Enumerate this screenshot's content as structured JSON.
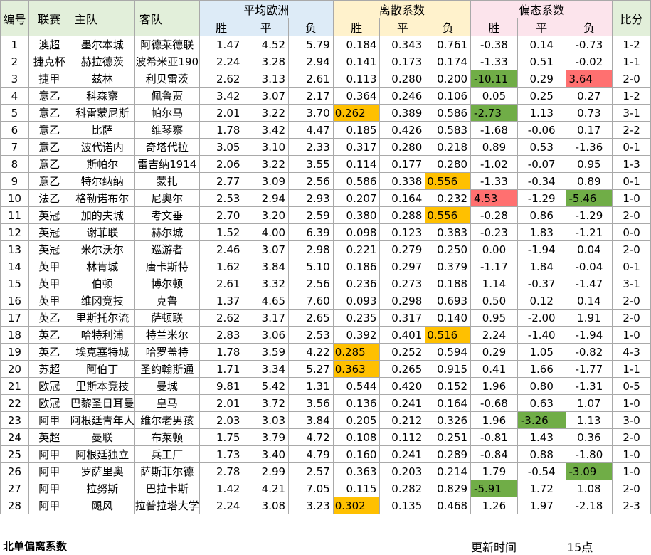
{
  "headers": {
    "id": "编号",
    "league": "联赛",
    "home": "主队",
    "away": "客队",
    "avg": "平均欧洲",
    "disp": "离散系数",
    "skew": "偏态系数",
    "score": "比分",
    "win": "胜",
    "draw": "平",
    "lose": "负"
  },
  "rows": [
    {
      "id": "1",
      "league": "澳超",
      "home": "墨尔本城",
      "away": "阿德莱德联",
      "a": [
        "1.47",
        "4.52",
        "5.79"
      ],
      "d": [
        "0.184",
        "0.343",
        "0.761"
      ],
      "s": [
        "-0.38",
        "0.14",
        "-0.73"
      ],
      "score": "1-2"
    },
    {
      "id": "2",
      "league": "捷克杯",
      "home": "赫拉德茨",
      "away": "波希米亚190",
      "a": [
        "2.24",
        "3.28",
        "2.94"
      ],
      "d": [
        "0.141",
        "0.173",
        "0.174"
      ],
      "s": [
        "-1.33",
        "0.51",
        "-0.02"
      ],
      "score": "1-1"
    },
    {
      "id": "3",
      "league": "捷甲",
      "home": "兹林",
      "away": "利贝雷茨",
      "a": [
        "2.62",
        "3.13",
        "2.61"
      ],
      "d": [
        "0.113",
        "0.280",
        "0.200"
      ],
      "s": [
        "-10.11",
        "0.29",
        "3.64"
      ],
      "score": "2-0"
    },
    {
      "id": "4",
      "league": "意乙",
      "home": "科森察",
      "away": "佩鲁贾",
      "a": [
        "3.42",
        "3.07",
        "2.17"
      ],
      "d": [
        "0.364",
        "0.246",
        "0.106"
      ],
      "s": [
        "0.05",
        "0.25",
        "0.27"
      ],
      "score": "1-2"
    },
    {
      "id": "5",
      "league": "意乙",
      "home": "科雷蒙尼斯",
      "away": "帕尔马",
      "a": [
        "2.01",
        "3.22",
        "3.70"
      ],
      "d": [
        "0.262",
        "0.389",
        "0.586"
      ],
      "s": [
        "-2.73",
        "1.13",
        "0.73"
      ],
      "score": "3-1"
    },
    {
      "id": "6",
      "league": "意乙",
      "home": "比萨",
      "away": "维琴察",
      "a": [
        "1.78",
        "3.42",
        "4.47"
      ],
      "d": [
        "0.185",
        "0.426",
        "0.583"
      ],
      "s": [
        "-1.68",
        "-0.06",
        "0.17"
      ],
      "score": "2-2"
    },
    {
      "id": "7",
      "league": "意乙",
      "home": "波代诺内",
      "away": "奇塔代拉",
      "a": [
        "3.05",
        "3.10",
        "2.33"
      ],
      "d": [
        "0.317",
        "0.280",
        "0.218"
      ],
      "s": [
        "0.89",
        "0.53",
        "-1.36"
      ],
      "score": "0-1"
    },
    {
      "id": "8",
      "league": "意乙",
      "home": "斯帕尔",
      "away": "雷吉纳1914",
      "a": [
        "2.06",
        "3.22",
        "3.55"
      ],
      "d": [
        "0.114",
        "0.177",
        "0.280"
      ],
      "s": [
        "-1.02",
        "-0.07",
        "0.95"
      ],
      "score": "1-3"
    },
    {
      "id": "9",
      "league": "意乙",
      "home": "特尔纳纳",
      "away": "蒙扎",
      "a": [
        "2.77",
        "3.09",
        "2.56"
      ],
      "d": [
        "0.586",
        "0.338",
        "0.556"
      ],
      "s": [
        "-1.33",
        "-0.34",
        "0.89"
      ],
      "score": "0-1"
    },
    {
      "id": "10",
      "league": "法乙",
      "home": "格勒诺布尔",
      "away": "尼奥尔",
      "a": [
        "2.53",
        "2.94",
        "2.93"
      ],
      "d": [
        "0.207",
        "0.164",
        "0.232"
      ],
      "s": [
        "4.53",
        "-1.29",
        "-5.46"
      ],
      "score": "1-0"
    },
    {
      "id": "11",
      "league": "英冠",
      "home": "加的夫城",
      "away": "考文垂",
      "a": [
        "2.70",
        "3.20",
        "2.59"
      ],
      "d": [
        "0.380",
        "0.288",
        "0.556"
      ],
      "s": [
        "-0.28",
        "0.86",
        "-1.29"
      ],
      "score": "2-0"
    },
    {
      "id": "12",
      "league": "英冠",
      "home": "谢菲联",
      "away": "赫尔城",
      "a": [
        "1.52",
        "4.00",
        "6.39"
      ],
      "d": [
        "0.098",
        "0.123",
        "0.383"
      ],
      "s": [
        "-0.23",
        "1.83",
        "-1.21"
      ],
      "score": "0-0"
    },
    {
      "id": "13",
      "league": "英冠",
      "home": "米尔沃尔",
      "away": "巡游者",
      "a": [
        "2.46",
        "3.07",
        "2.98"
      ],
      "d": [
        "0.221",
        "0.279",
        "0.250"
      ],
      "s": [
        "0.00",
        "-1.94",
        "0.04"
      ],
      "score": "2-0"
    },
    {
      "id": "14",
      "league": "英甲",
      "home": "林肯城",
      "away": "唐卡斯特",
      "a": [
        "1.62",
        "3.84",
        "5.10"
      ],
      "d": [
        "0.186",
        "0.297",
        "0.379"
      ],
      "s": [
        "-1.17",
        "1.84",
        "-0.04"
      ],
      "score": "0-1"
    },
    {
      "id": "15",
      "league": "英甲",
      "home": "伯顿",
      "away": "博尔顿",
      "a": [
        "2.61",
        "3.32",
        "2.56"
      ],
      "d": [
        "0.236",
        "0.273",
        "0.188"
      ],
      "s": [
        "1.14",
        "-0.37",
        "-1.47"
      ],
      "score": "3-1"
    },
    {
      "id": "16",
      "league": "英甲",
      "home": "维冈竞技",
      "away": "克鲁",
      "a": [
        "1.37",
        "4.65",
        "7.60"
      ],
      "d": [
        "0.093",
        "0.298",
        "0.693"
      ],
      "s": [
        "0.50",
        "0.12",
        "0.14"
      ],
      "score": "2-0"
    },
    {
      "id": "17",
      "league": "英乙",
      "home": "里斯托尔流",
      "away": "萨顿联",
      "a": [
        "2.62",
        "3.17",
        "2.65"
      ],
      "d": [
        "0.235",
        "0.317",
        "0.140"
      ],
      "s": [
        "0.95",
        "-2.00",
        "1.91"
      ],
      "score": "2-0"
    },
    {
      "id": "18",
      "league": "英乙",
      "home": "哈特利浦",
      "away": "特兰米尔",
      "a": [
        "2.83",
        "3.06",
        "2.53"
      ],
      "d": [
        "0.392",
        "0.401",
        "0.516"
      ],
      "s": [
        "2.24",
        "-1.40",
        "-1.94"
      ],
      "score": "1-0"
    },
    {
      "id": "19",
      "league": "英乙",
      "home": "埃克塞特城",
      "away": "哈罗盖特",
      "a": [
        "1.78",
        "3.59",
        "4.22"
      ],
      "d": [
        "0.285",
        "0.252",
        "0.594"
      ],
      "s": [
        "0.29",
        "1.05",
        "-0.82"
      ],
      "score": "4-3"
    },
    {
      "id": "20",
      "league": "苏超",
      "home": "阿伯丁",
      "away": "圣约翰斯通",
      "a": [
        "1.71",
        "3.34",
        "5.27"
      ],
      "d": [
        "0.363",
        "0.265",
        "0.915"
      ],
      "s": [
        "0.41",
        "1.66",
        "-1.77"
      ],
      "score": "1-1"
    },
    {
      "id": "21",
      "league": "欧冠",
      "home": "里斯本竞技",
      "away": "曼城",
      "a": [
        "9.81",
        "5.42",
        "1.31"
      ],
      "d": [
        "0.544",
        "0.420",
        "0.152"
      ],
      "s": [
        "1.96",
        "0.80",
        "-1.31"
      ],
      "score": "0-5"
    },
    {
      "id": "22",
      "league": "欧冠",
      "home": "巴黎圣日耳曼",
      "away": "皇马",
      "a": [
        "2.01",
        "3.72",
        "3.56"
      ],
      "d": [
        "0.136",
        "0.241",
        "0.164"
      ],
      "s": [
        "-0.68",
        "0.63",
        "1.07"
      ],
      "score": "1-0"
    },
    {
      "id": "23",
      "league": "阿甲",
      "home": "阿根廷青年人",
      "away": "维尔老男孩",
      "a": [
        "2.03",
        "3.03",
        "3.84"
      ],
      "d": [
        "0.205",
        "0.212",
        "0.326"
      ],
      "s": [
        "1.96",
        "-3.26",
        "1.13"
      ],
      "score": "3-0"
    },
    {
      "id": "24",
      "league": "英超",
      "home": "曼联",
      "away": "布莱顿",
      "a": [
        "1.75",
        "3.79",
        "4.72"
      ],
      "d": [
        "0.108",
        "0.112",
        "0.251"
      ],
      "s": [
        "-0.81",
        "1.43",
        "0.36"
      ],
      "score": "2-0"
    },
    {
      "id": "25",
      "league": "阿甲",
      "home": "阿根廷独立",
      "away": "兵工厂",
      "a": [
        "1.73",
        "3.40",
        "4.79"
      ],
      "d": [
        "0.160",
        "0.241",
        "0.289"
      ],
      "s": [
        "-0.84",
        "0.88",
        "-1.80"
      ],
      "score": "1-0"
    },
    {
      "id": "26",
      "league": "阿甲",
      "home": "罗萨里奥",
      "away": "萨斯菲尔德",
      "a": [
        "2.78",
        "2.99",
        "2.57"
      ],
      "d": [
        "0.363",
        "0.203",
        "0.214"
      ],
      "s": [
        "1.79",
        "-0.54",
        "-3.09"
      ],
      "score": "1-0"
    },
    {
      "id": "27",
      "league": "阿甲",
      "home": "拉努斯",
      "away": "巴拉卡斯",
      "a": [
        "1.42",
        "4.21",
        "7.05"
      ],
      "d": [
        "0.115",
        "0.282",
        "0.829"
      ],
      "s": [
        "-5.91",
        "1.72",
        "1.08"
      ],
      "score": "2-0"
    },
    {
      "id": "28",
      "league": "阿甲",
      "home": "飓风",
      "away": "拉普拉塔大学",
      "a": [
        "2.24",
        "3.08",
        "3.23"
      ],
      "d": [
        "0.302",
        "0.135",
        "0.468"
      ],
      "s": [
        "1.26",
        "1.97",
        "-2.18"
      ],
      "score": "2-3"
    }
  ],
  "highlights": {
    "3": {
      "s0": "#70ad47",
      "s2": "#ff7070"
    },
    "5": {
      "d0": "#ffc000",
      "s0": "#70ad47"
    },
    "9": {
      "d2": "#ffc000"
    },
    "10": {
      "s0": "#ff7070",
      "s2": "#70ad47"
    },
    "11": {
      "d2": "#ffc000"
    },
    "18": {
      "d2": "#ffc000"
    },
    "19": {
      "d0": "#ffc000"
    },
    "20": {
      "d0": "#ffc000"
    },
    "23": {
      "s1": "#70ad47"
    },
    "26": {
      "s2": "#70ad47"
    },
    "27": {
      "s0": "#70ad47"
    },
    "28": {
      "d0": "#ffc000"
    }
  },
  "footer": {
    "title": "北单偏离系数",
    "update_label": "更新时间",
    "update_value": "15点"
  }
}
